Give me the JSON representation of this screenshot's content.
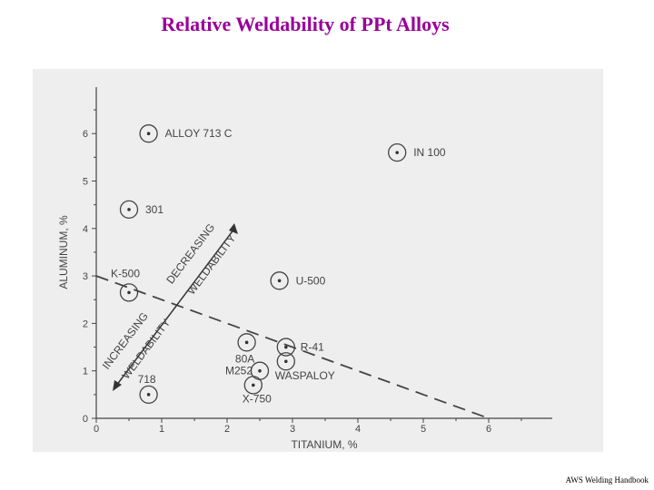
{
  "slide": {
    "title": "Relative Weldability of PPt Alloys",
    "source": "AWS Welding Handbook"
  },
  "chart_data": {
    "type": "scatter",
    "xlabel": "TITANIUM, %",
    "ylabel": "ALUMINUM, %",
    "xlim": [
      0,
      7
    ],
    "ylim": [
      0,
      7
    ],
    "xticks": [
      0,
      1,
      2,
      3,
      4,
      5,
      6
    ],
    "yticks": [
      0,
      1,
      2,
      3,
      4,
      5,
      6
    ],
    "grid": false,
    "points": [
      {
        "label": "ALLOY 713 C",
        "x": 0.8,
        "y": 6.0
      },
      {
        "label": "IN 100",
        "x": 4.6,
        "y": 5.6
      },
      {
        "label": "301",
        "x": 0.5,
        "y": 4.4
      },
      {
        "label": "U-500",
        "x": 2.8,
        "y": 2.9
      },
      {
        "label": "K-500",
        "x": 0.5,
        "y": 2.65
      },
      {
        "label": "80A",
        "x": 2.3,
        "y": 1.6
      },
      {
        "label": "R-41",
        "x": 2.9,
        "y": 1.5
      },
      {
        "label": "M252",
        "x": 2.5,
        "y": 1.0
      },
      {
        "label": "WASPALOY",
        "x": 2.9,
        "y": 1.2
      },
      {
        "label": "X-750",
        "x": 2.4,
        "y": 0.7
      },
      {
        "label": "718",
        "x": 0.8,
        "y": 0.5
      }
    ],
    "boundary_line": {
      "x": [
        0,
        6
      ],
      "y": [
        3,
        0
      ],
      "style": "dashed"
    },
    "annotations": {
      "decreasing_1": "DECREASING",
      "decreasing_2": "WELDABILITY",
      "increasing_1": "INCREASING",
      "increasing_2": "WELDABILITY"
    }
  }
}
